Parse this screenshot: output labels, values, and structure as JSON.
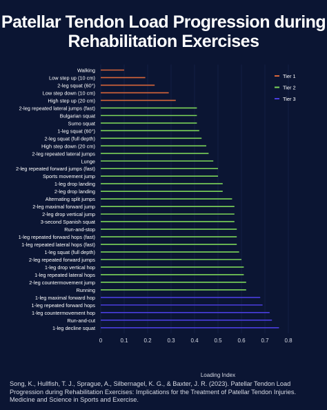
{
  "title_line1": "Patellar Tendon Load Progression during",
  "title_line2": "Rehabilitation Exercises",
  "citation": "Song, K., Hullfish, T. J., Sprague, A., Silbernagel, K. G., & Baxter, J. R. (2023). Patellar Tendon Load Progression during Rehabilitation Exercises: Implications for the Treatment of Patellar Tendon Injuries. Medicine and Science in Sports and Exercise.",
  "colors": {
    "tier1": "#d9663a",
    "tier2": "#7dd65a",
    "tier3": "#4a3ee0"
  },
  "chart_data": {
    "type": "bar",
    "orientation": "horizontal",
    "title": "Patellar Tendon Load Progression during Rehabilitation Exercises",
    "xlabel": "Loading Index",
    "ylabel": "",
    "xlim": [
      0,
      0.8
    ],
    "xticks": [
      "0",
      "0.1",
      "0.2",
      "0.3",
      "0.4",
      "0.5",
      "0.6",
      "0.7",
      "0.8"
    ],
    "legend": {
      "position": "top-right",
      "entries": [
        "Tier 1",
        "Tier 2",
        "Tier 3"
      ]
    },
    "categories": [
      "Walking",
      "Low step up (10 cm)",
      "2-leg squat (60°)",
      "Low step down (10 cm)",
      "High step up (20 cm)",
      "2-leg repeated lateral jumps (fast)",
      "Bulgarian squat",
      "Sumo squat",
      "1-leg squat (60°)",
      "2-leg squat (full depth)",
      "High step down (20 cm)",
      "2-leg repeated lateral jumps",
      "Lunge",
      "2-leg repeated forward jumps (fast)",
      "Sports movement jump",
      "1-leg drop landing",
      "2-leg drop landing",
      "Alternating split jumps",
      "2-leg maximal forward jump",
      "2-leg drop vertical jump",
      "3-second Spanish squat",
      "Run-and-stop",
      "1-leg repeated forward hops (fast)",
      "1-leg repeated lateral hops (fast)",
      "1-leg squat (full depth)",
      "2-leg repeated forward jumps",
      "1-leg drop vertical hop",
      "1-leg repeated lateral hops",
      "2-leg countermovement jump",
      "Running",
      "1-leg maximal forward hop",
      "1-leg repeated forward hops",
      "1-leg countermovement hop",
      "Run-and-cut",
      "1-leg decline squat"
    ],
    "values": [
      0.1,
      0.19,
      0.23,
      0.29,
      0.32,
      0.41,
      0.41,
      0.41,
      0.42,
      0.43,
      0.45,
      0.46,
      0.48,
      0.5,
      0.5,
      0.52,
      0.52,
      0.56,
      0.57,
      0.57,
      0.57,
      0.58,
      0.58,
      0.58,
      0.59,
      0.6,
      0.61,
      0.61,
      0.62,
      0.62,
      0.68,
      0.69,
      0.72,
      0.73,
      0.76
    ],
    "tiers": [
      1,
      1,
      1,
      1,
      1,
      2,
      2,
      2,
      2,
      2,
      2,
      2,
      2,
      2,
      2,
      2,
      2,
      2,
      2,
      2,
      2,
      2,
      2,
      2,
      2,
      2,
      2,
      2,
      2,
      2,
      3,
      3,
      3,
      3,
      3
    ]
  }
}
